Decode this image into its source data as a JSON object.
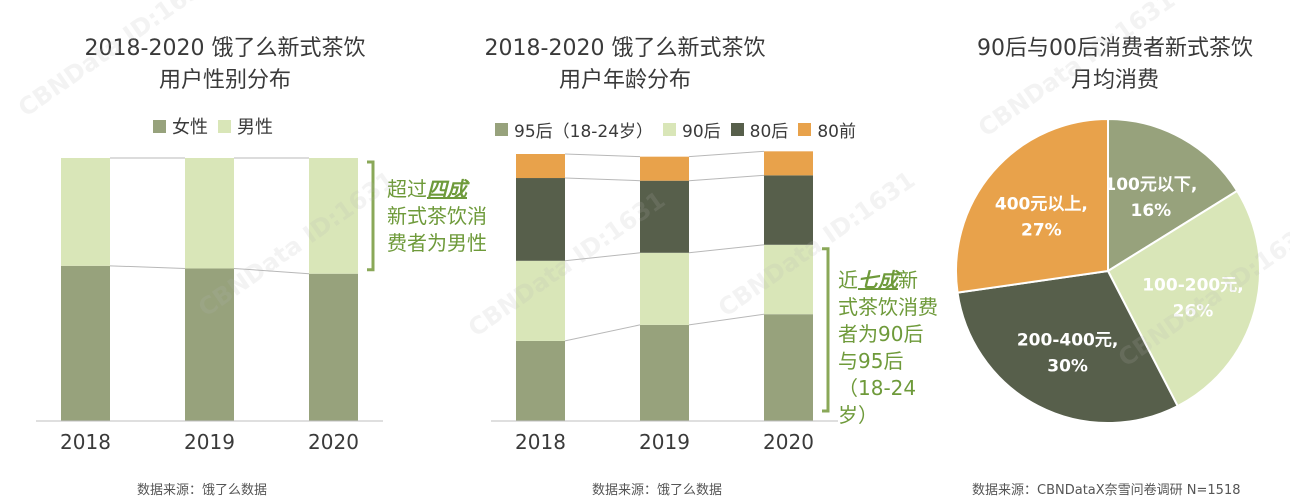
{
  "watermark": "CBNData ID:1631",
  "chart_data": [
    {
      "type": "bar",
      "stacked": true,
      "title": "2018-2020 饿了么新式茶饮\n用户性别分布",
      "title_line1": "2018-2020 饿了么新式茶饮",
      "title_line2": "用户性别分布",
      "categories": [
        "2018",
        "2019",
        "2020"
      ],
      "series": [
        {
          "name": "女性",
          "color": "#97a27c",
          "values": [
            59,
            58,
            56
          ]
        },
        {
          "name": "男性",
          "color": "#d9e6b8",
          "values": [
            41,
            42,
            44
          ]
        }
      ],
      "ylim": [
        0,
        100
      ],
      "annotation": {
        "pre": "超过",
        "em": "四成",
        "post": "新式茶饮消费者为男性",
        "line1_pre": "超过",
        "line1_em": "四成",
        "line2": "新式茶饮消",
        "line3": "费者为男性"
      },
      "source": "数据来源：饿了么数据"
    },
    {
      "type": "bar",
      "stacked": true,
      "title_line1": "2018-2020 饿了么新式茶饮",
      "title_line2": "用户年龄分布",
      "categories": [
        "2018",
        "2019",
        "2020"
      ],
      "series": [
        {
          "name": "95后（18-24岁）",
          "color": "#97a27c",
          "values": [
            30,
            36,
            40
          ]
        },
        {
          "name": "90后",
          "color": "#d9e6b8",
          "values": [
            30,
            27,
            26
          ]
        },
        {
          "name": "80后",
          "color": "#575f4b",
          "values": [
            31,
            27,
            26
          ]
        },
        {
          "name": "80前",
          "color": "#e8a24b",
          "values": [
            9,
            9,
            9
          ]
        }
      ],
      "ylim": [
        0,
        100
      ],
      "annotation": {
        "pre": "近",
        "em": "七成",
        "post": "新式茶饮消费者为90后与95后（18-24岁）",
        "line1_pre": "近",
        "line1_em": "七成",
        "line1_post": "新",
        "line2": "式茶饮消费",
        "line3": "者为90后",
        "line4": "与95后",
        "line5": "（18-24",
        "line6": "岁）"
      },
      "source": "数据来源：饿了么数据"
    },
    {
      "type": "pie",
      "title_line1": "90后与00后消费者新式茶饮",
      "title_line2": "月均消费",
      "slices": [
        {
          "label": "100元以下,",
          "pct": "16%",
          "value": 16,
          "color": "#97a27c",
          "text_color": "#ffffff"
        },
        {
          "label": "100-200元,",
          "pct": "26%",
          "value": 26,
          "color": "#d9e6b8",
          "text_color": "#ffffff"
        },
        {
          "label": "200-400元,",
          "pct": "30%",
          "value": 30,
          "color": "#575f4b",
          "text_color": "#ffffff"
        },
        {
          "label": "400元以上,",
          "pct": "27%",
          "value": 27,
          "color": "#e8a24b",
          "text_color": "#ffffff"
        }
      ],
      "source": "数据来源：CBNDataX奈雪问卷调研 N=1518"
    }
  ]
}
